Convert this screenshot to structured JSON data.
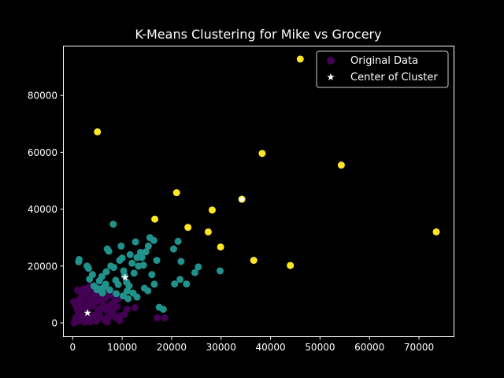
{
  "chart_data": {
    "type": "scatter",
    "title": "K-Means Clustering for Mike vs Grocery",
    "xlabel": "",
    "ylabel": "",
    "xlim": [
      -1800,
      77000
    ],
    "ylim": [
      -4700,
      97500
    ],
    "xticks": [
      0,
      10000,
      20000,
      30000,
      40000,
      50000,
      60000,
      70000
    ],
    "xtick_labels": [
      "0",
      "10000",
      "20000",
      "30000",
      "40000",
      "50000",
      "60000",
      "70000"
    ],
    "yticks": [
      0,
      20000,
      40000,
      60000,
      80000
    ],
    "ytick_labels": [
      "0",
      "20000",
      "40000",
      "60000",
      "80000"
    ],
    "grid": false,
    "legend_placement": "upper right",
    "legend": [
      {
        "label": "Original Data",
        "marker": "circle",
        "color": "#440154"
      },
      {
        "label": "Center of Cluster",
        "marker": "star",
        "color": "#ffffff"
      }
    ],
    "series": [
      {
        "cluster": 0,
        "color": "#440154",
        "points": [
          [
            300,
            0
          ],
          [
            600,
            1800
          ],
          [
            900,
            600
          ],
          [
            1200,
            3000
          ],
          [
            1500,
            900
          ],
          [
            1800,
            5200
          ],
          [
            2100,
            2400
          ],
          [
            2400,
            300
          ],
          [
            2700,
            7200
          ],
          [
            3000,
            4200
          ],
          [
            3300,
            1500
          ],
          [
            3600,
            9000
          ],
          [
            3900,
            6000
          ],
          [
            4200,
            2700
          ],
          [
            4500,
            10500
          ],
          [
            4800,
            600
          ],
          [
            5100,
            7800
          ],
          [
            5400,
            3600
          ],
          [
            5700,
            11000
          ],
          [
            6000,
            5400
          ],
          [
            6300,
            1200
          ],
          [
            6600,
            8700
          ],
          [
            6900,
            4500
          ],
          [
            7200,
            2100
          ],
          [
            7500,
            9600
          ],
          [
            7800,
            6600
          ],
          [
            8100,
            3300
          ],
          [
            8400,
            7500
          ],
          [
            8700,
            1800
          ],
          [
            9000,
            5700
          ],
          [
            9300,
            8400
          ],
          [
            9600,
            2400
          ],
          [
            600,
            6300
          ],
          [
            1200,
            8100
          ],
          [
            1800,
            9900
          ],
          [
            2400,
            11400
          ],
          [
            3000,
            12300
          ],
          [
            900,
            4800
          ],
          [
            1500,
            7000
          ],
          [
            2100,
            8400
          ],
          [
            2700,
            10200
          ],
          [
            3300,
            6600
          ],
          [
            3900,
            11700
          ],
          [
            4500,
            7200
          ],
          [
            5100,
            4800
          ],
          [
            5700,
            8100
          ],
          [
            6300,
            10800
          ],
          [
            6900,
            9300
          ],
          [
            7500,
            6000
          ],
          [
            8100,
            9900
          ],
          [
            3600,
            13000
          ],
          [
            2200,
            12000
          ],
          [
            4800,
            12600
          ],
          [
            5500,
            2200
          ],
          [
            6200,
            6200
          ],
          [
            7000,
            300
          ],
          [
            8000,
            4000
          ],
          [
            9500,
            800
          ],
          [
            10500,
            3000
          ],
          [
            11000,
            4800
          ],
          [
            12600,
            5400
          ],
          [
            200,
            7500
          ],
          [
            1000,
            11500
          ],
          [
            17100,
            1800
          ],
          [
            18600,
            1800
          ],
          [
            1500,
            2500
          ],
          [
            2500,
            5500
          ],
          [
            3500,
            400
          ],
          [
            4000,
            8800
          ],
          [
            5000,
            9800
          ]
        ]
      },
      {
        "cluster": 1,
        "color": "#21918c",
        "points": [
          [
            1200,
            21500
          ],
          [
            1300,
            22300
          ],
          [
            2900,
            20000
          ],
          [
            3200,
            19200
          ],
          [
            4000,
            17000
          ],
          [
            3400,
            15400
          ],
          [
            4300,
            13000
          ],
          [
            4900,
            11700
          ],
          [
            5400,
            14800
          ],
          [
            5900,
            16300
          ],
          [
            6300,
            12600
          ],
          [
            6800,
            18000
          ],
          [
            7000,
            26000
          ],
          [
            7300,
            25200
          ],
          [
            7700,
            20000
          ],
          [
            8300,
            19500
          ],
          [
            8200,
            34700
          ],
          [
            8700,
            15000
          ],
          [
            9200,
            13500
          ],
          [
            9500,
            22000
          ],
          [
            10000,
            22800
          ],
          [
            10300,
            18300
          ],
          [
            10500,
            16600
          ],
          [
            10900,
            14300
          ],
          [
            11400,
            13000
          ],
          [
            11600,
            24000
          ],
          [
            12000,
            21000
          ],
          [
            12400,
            17500
          ],
          [
            12700,
            28500
          ],
          [
            13000,
            23000
          ],
          [
            13300,
            20000
          ],
          [
            13700,
            24800
          ],
          [
            14000,
            23000
          ],
          [
            14300,
            20300
          ],
          [
            14800,
            25000
          ],
          [
            15300,
            27000
          ],
          [
            15600,
            30000
          ],
          [
            16000,
            17000
          ],
          [
            16500,
            13600
          ],
          [
            16400,
            29000
          ],
          [
            17000,
            22000
          ],
          [
            17500,
            5500
          ],
          [
            18300,
            4800
          ],
          [
            20400,
            26000
          ],
          [
            20600,
            13700
          ],
          [
            21300,
            28700
          ],
          [
            21700,
            15300
          ],
          [
            21900,
            21600
          ],
          [
            23000,
            13700
          ],
          [
            24700,
            17700
          ],
          [
            25400,
            19700
          ],
          [
            29800,
            18300
          ],
          [
            6000,
            10500
          ],
          [
            7500,
            11600
          ],
          [
            8800,
            10300
          ],
          [
            10200,
            9500
          ],
          [
            11200,
            8500
          ],
          [
            12200,
            10500
          ],
          [
            13000,
            9100
          ],
          [
            14500,
            12200
          ],
          [
            15200,
            11300
          ],
          [
            9800,
            27000
          ],
          [
            11000,
            11200
          ],
          [
            6700,
            13600
          ],
          [
            5200,
            12000
          ]
        ]
      },
      {
        "cluster": 2,
        "color": "#fde725",
        "points": [
          [
            5000,
            67200
          ],
          [
            46000,
            92800
          ],
          [
            38300,
            59600
          ],
          [
            54300,
            55500
          ],
          [
            21000,
            45800
          ],
          [
            34200,
            43500
          ],
          [
            16600,
            36500
          ],
          [
            28200,
            39700
          ],
          [
            23300,
            33600
          ],
          [
            27400,
            32000
          ],
          [
            29900,
            26700
          ],
          [
            36600,
            22000
          ],
          [
            44000,
            20200
          ],
          [
            73500,
            32000
          ]
        ]
      }
    ],
    "centers": [
      {
        "cluster": 0,
        "x": 3000,
        "y": 3500
      },
      {
        "cluster": 1,
        "x": 10600,
        "y": 16000
      },
      {
        "cluster": 2,
        "x": 34200,
        "y": 43500
      }
    ]
  }
}
